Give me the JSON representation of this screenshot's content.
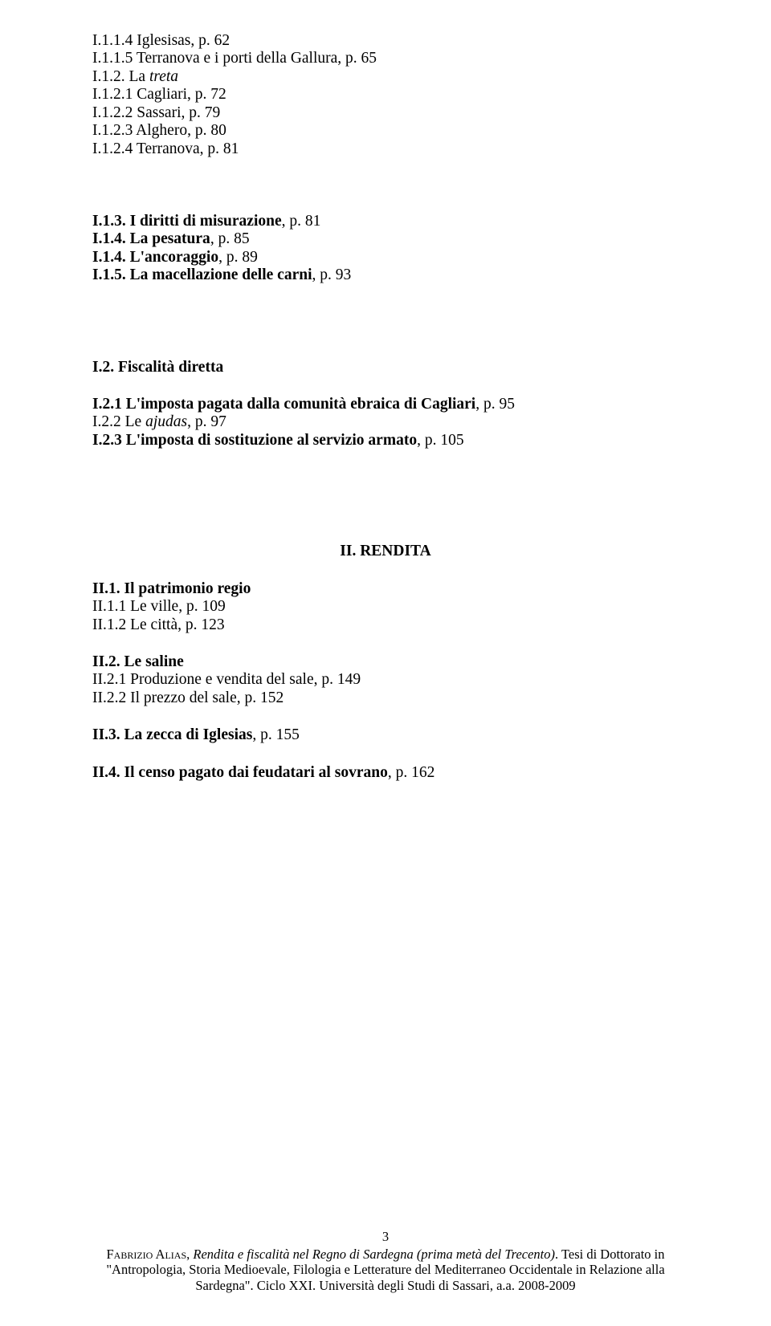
{
  "lines": {
    "l1": "I.1.1.4 Iglesisas, p. 62",
    "l2_pre": "I.1.1.5 Terranova e i porti della Gallura",
    "l2_post": ", p. 65",
    "l3_pre": "I.1.2. La ",
    "l3_it": "treta",
    "l4": "I.1.2.1 Cagliari, p. 72",
    "l5": "I.1.2.2 Sassari, p. 79",
    "l6": "I.1.2.3 Alghero, p. 80",
    "l7": "I.1.2.4 Terranova, p. 81",
    "l8_b": "I.1.3. I diritti di misurazione",
    "l8_post": ", p. 81",
    "l9_b": "I.1.4. La pesatura",
    "l9_post": ", p. 85",
    "l10_b": "I.1.4. L'ancoraggio",
    "l10_post": ", p. 89",
    "l11_b": "I.1.5. La macellazione delle carni",
    "l11_post": ", p. 93",
    "l12_b": "I.2. Fiscalità diretta",
    "l13_b": "I.2.1 L'imposta pagata dalla comunità ebraica di Cagliari",
    "l13_post": ", p. 95",
    "l14_pre": "I.2.2 Le ",
    "l14_it": "ajudas",
    "l14_post": ", p. 97",
    "l15_b": "I.2.3 L'imposta di sostituzione al servizio armato",
    "l15_post": ", p. 105",
    "heading2": "II. RENDITA",
    "l16_b": "II.1. Il patrimonio regio",
    "l17": "II.1.1 Le ville, p. 109",
    "l18": "II.1.2 Le città, p. 123",
    "l19_b": "II.2. Le saline",
    "l20": "II.2.1 Produzione e vendita del sale, p. 149",
    "l21": "II.2.2 Il prezzo del sale, p. 152",
    "l22_b": "II.3. La zecca di Iglesias",
    "l22_post": ", p. 155",
    "l23_b": "II.4. Il censo pagato dai feudatari al sovrano",
    "l23_post": ", p. 162"
  },
  "footer": {
    "page": "3",
    "author_sc": "Fabrizio Alias",
    "text_italic1": "Rendita e fiscalità nel Regno di Sardegna (prima metà del Trecento)",
    "text_after1": ". Tesi di Dottorato in \"Antropologia, Storia Medioevale, Filologia e Letterature del Mediterraneo Occidentale in Relazione alla Sardegna\". Ciclo XXI. Università degli Studi di Sassari, a.a. 2008-2009",
    "comma_sep": ", "
  }
}
